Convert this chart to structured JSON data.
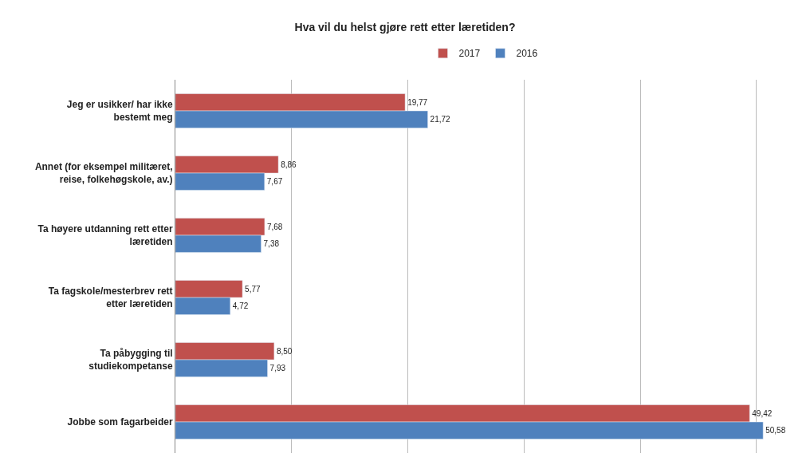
{
  "chart_data": {
    "type": "bar",
    "orientation": "horizontal",
    "title": "Hva vil du helst gjøre rett etter læretiden?",
    "categories": [
      "Jeg er usikker/ har ikke bestemt meg",
      "Annet (for eksempel militæret, reise, folkehøgskole, av.)",
      "Ta høyere utdanning rett etter læretiden",
      "Ta fagskole/mesterbrev rett etter læretiden",
      "Ta påbygging til studiekompetanse",
      "Jobbe som fagarbeider"
    ],
    "series": [
      {
        "name": "2017",
        "color": "#c0504d",
        "values": [
          19.77,
          8.86,
          7.68,
          5.77,
          8.5,
          49.42
        ],
        "value_labels": [
          "19,77",
          "8,86",
          "7,68",
          "5,77",
          "8,50",
          "49,42"
        ]
      },
      {
        "name": "2016",
        "color": "#4f81bd",
        "values": [
          21.72,
          7.67,
          7.38,
          4.72,
          7.93,
          50.58
        ],
        "value_labels": [
          "21,72",
          "7,67",
          "7,38",
          "4,72",
          "7,93",
          "50,58"
        ]
      }
    ],
    "grid": "x",
    "legend": "top",
    "tick_labels": "y"
  }
}
